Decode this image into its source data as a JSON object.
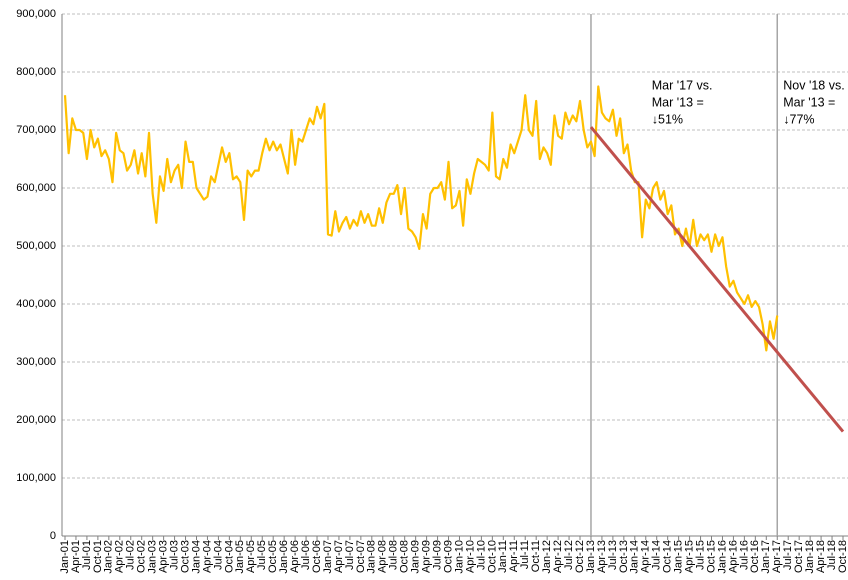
{
  "chart_data": {
    "type": "line",
    "categories": [
      "Jan-01",
      null,
      null,
      "Apr-01",
      null,
      null,
      "Jul-01",
      null,
      null,
      "Oct-01",
      null,
      null,
      "Jan-02",
      null,
      null,
      "Apr-02",
      null,
      null,
      "Jul-02",
      null,
      null,
      "Oct-02",
      null,
      null,
      "Jan-03",
      null,
      null,
      "Apr-03",
      null,
      null,
      "Jul-03",
      null,
      null,
      "Oct-03",
      null,
      null,
      "Jan-04",
      null,
      null,
      "Apr-04",
      null,
      null,
      "Jul-04",
      null,
      null,
      "Oct-04",
      null,
      null,
      "Jan-05",
      null,
      null,
      "Apr-05",
      null,
      null,
      "Jul-05",
      null,
      null,
      "Oct-05",
      null,
      null,
      "Jan-06",
      null,
      null,
      "Apr-06",
      null,
      null,
      "Jul-06",
      null,
      null,
      "Oct-06",
      null,
      null,
      "Jan-07",
      null,
      null,
      "Apr-07",
      null,
      null,
      "Jul-07",
      null,
      null,
      "Oct-07",
      null,
      null,
      "Jan-08",
      null,
      null,
      "Apr-08",
      null,
      null,
      "Jul-08",
      null,
      null,
      "Oct-08",
      null,
      null,
      "Jan-09",
      null,
      null,
      "Apr-09",
      null,
      null,
      "Jul-09",
      null,
      null,
      "Oct-09",
      null,
      null,
      "Jan-10",
      null,
      null,
      "Apr-10",
      null,
      null,
      "Jul-10",
      null,
      null,
      "Oct-10",
      null,
      null,
      "Jan-11",
      null,
      null,
      "Apr-11",
      null,
      null,
      "Jul-11",
      null,
      null,
      "Oct-11",
      null,
      null,
      "Jan-12",
      null,
      null,
      "Apr-12",
      null,
      null,
      "Jul-12",
      null,
      null,
      "Oct-12",
      null,
      null,
      "Jan-13",
      null,
      null,
      "Apr-13",
      null,
      null,
      "Jul-13",
      null,
      null,
      "Oct-13",
      null,
      null,
      "Jan-14",
      null,
      null,
      "Apr-14",
      null,
      null,
      "Jul-14",
      null,
      null,
      "Oct-14",
      null,
      null,
      "Jan-15",
      null,
      null,
      "Apr-15",
      null,
      null,
      "Jul-15",
      null,
      null,
      "Oct-15",
      null,
      null,
      "Jan-16",
      null,
      null,
      "Apr-16",
      null,
      null,
      "Jul-16",
      null,
      null,
      "Oct-16",
      null,
      null,
      "Jan-17",
      null,
      null,
      "Apr-17",
      null,
      null,
      "Jul-17",
      null,
      null,
      "Oct-17",
      null,
      null,
      "Jan-18",
      null,
      null,
      "Apr-18",
      null,
      null,
      "Jul-18",
      null,
      null,
      "Oct-18"
    ],
    "series": [
      {
        "color": "#ffc000",
        "values": [
          760000,
          660000,
          720000,
          700000,
          700000,
          695000,
          650000,
          700000,
          670000,
          685000,
          655000,
          665000,
          650000,
          610000,
          695000,
          665000,
          660000,
          630000,
          640000,
          665000,
          625000,
          660000,
          620000,
          695000,
          590000,
          540000,
          620000,
          595000,
          650000,
          610000,
          630000,
          640000,
          600000,
          680000,
          645000,
          645000,
          600000,
          590000,
          580000,
          585000,
          620000,
          610000,
          640000,
          670000,
          645000,
          660000,
          615000,
          620000,
          610000,
          545000,
          630000,
          620000,
          630000,
          630000,
          660000,
          685000,
          665000,
          680000,
          665000,
          675000,
          650000,
          625000,
          700000,
          640000,
          685000,
          680000,
          700000,
          720000,
          710000,
          740000,
          720000,
          745000,
          520000,
          518000,
          560000,
          525000,
          540000,
          550000,
          530000,
          545000,
          535000,
          560000,
          540000,
          555000,
          535000,
          535000,
          565000,
          540000,
          575000,
          590000,
          590000,
          605000,
          555000,
          600000,
          530000,
          525000,
          515000,
          495000,
          555000,
          530000,
          590000,
          600000,
          600000,
          610000,
          580000,
          645000,
          565000,
          570000,
          595000,
          535000,
          615000,
          590000,
          625000,
          650000,
          645000,
          640000,
          630000,
          730000,
          620000,
          615000,
          650000,
          635000,
          675000,
          660000,
          680000,
          700000,
          760000,
          700000,
          690000,
          750000,
          650000,
          670000,
          660000,
          640000,
          725000,
          690000,
          685000,
          730000,
          710000,
          725000,
          715000,
          750000,
          700000,
          670000,
          680000,
          655000,
          775000,
          730000,
          720000,
          715000,
          735000,
          690000,
          720000,
          660000,
          675000,
          630000,
          610000,
          610000,
          515000,
          580000,
          565000,
          600000,
          610000,
          580000,
          595000,
          555000,
          570000,
          520000,
          530000,
          500000,
          530000,
          500000,
          545000,
          500000,
          520000,
          510000,
          520000,
          490000,
          520000,
          500000,
          515000,
          465000,
          430000,
          440000,
          420000,
          410000,
          400000,
          415000,
          395000,
          405000,
          395000,
          365000,
          320000,
          370000,
          340000,
          380000,
          null,
          null,
          null,
          null,
          null,
          null,
          null,
          null,
          null,
          null,
          null,
          null,
          null,
          null,
          null,
          null,
          null,
          null
        ]
      }
    ],
    "trendline": {
      "x": [
        "Jan-13",
        "Oct-18"
      ],
      "values": [
        705000,
        180000
      ],
      "color": "#c0504d"
    },
    "vlines": [
      "Jan-13",
      "Apr-17"
    ],
    "annotations": [
      {
        "x": "Apr-14",
        "lines": [
          "Mar '17 vs.",
          "Mar '13 =",
          "↓51%"
        ]
      },
      {
        "x": "Apr-17",
        "lines": [
          "Nov '18 vs.",
          "Mar '13 =",
          "↓77%"
        ]
      }
    ],
    "ylim": [
      0,
      900000
    ],
    "yticks": [
      0,
      {
        "value": 100000,
        "label": "100,000"
      },
      {
        "value": 200000,
        "label": "200,000"
      },
      {
        "value": 300000,
        "label": "300,000"
      },
      {
        "value": 400000,
        "label": "400,000"
      },
      {
        "value": 500000,
        "label": "500,000"
      },
      {
        "value": 600000,
        "label": "600,000"
      },
      {
        "value": 700000,
        "label": "700,000"
      },
      {
        "value": 800000,
        "label": "800,000"
      },
      {
        "value": 900000,
        "label": "900,000"
      }
    ],
    "grid": true
  }
}
